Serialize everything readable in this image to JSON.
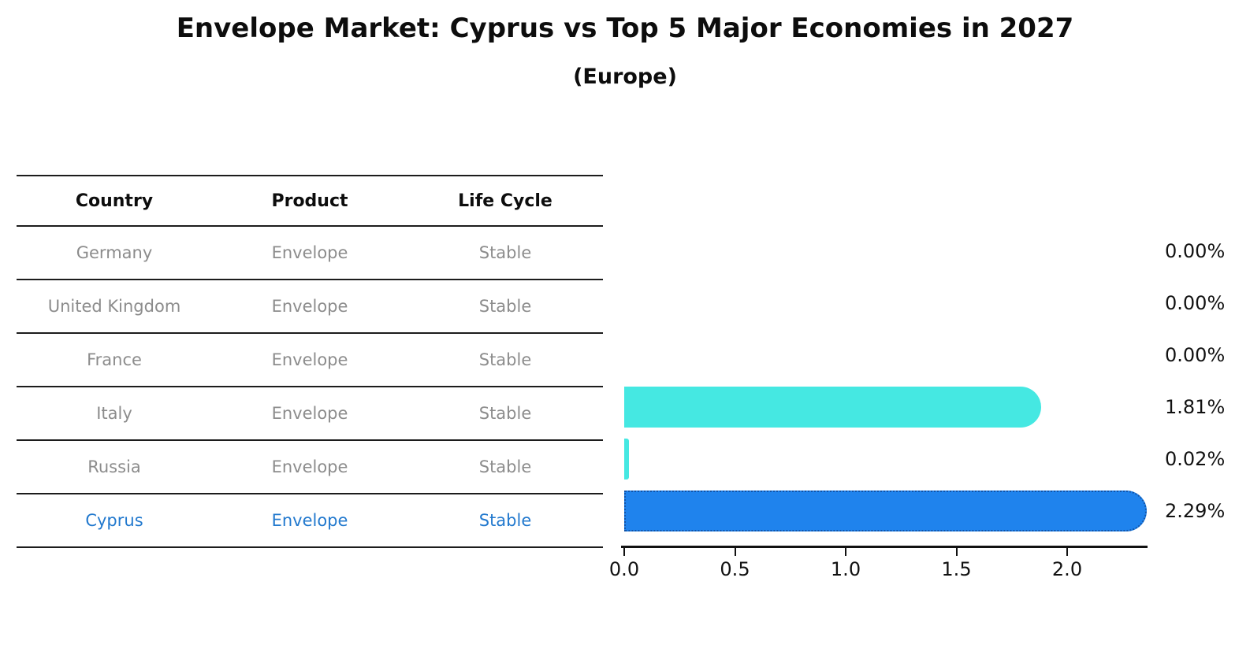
{
  "header": {
    "title": "Envelope Market: Cyprus vs Top 5 Major Economies in 2027",
    "subtitle": "(Europe)"
  },
  "table": {
    "columns": [
      "Country",
      "Product",
      "Life Cycle"
    ],
    "rows": [
      {
        "country": "Germany",
        "product": "Envelope",
        "life_cycle": "Stable",
        "highlight": false
      },
      {
        "country": "United Kingdom",
        "product": "Envelope",
        "life_cycle": "Stable",
        "highlight": false
      },
      {
        "country": "France",
        "product": "Envelope",
        "life_cycle": "Stable",
        "highlight": false
      },
      {
        "country": "Italy",
        "product": "Envelope",
        "life_cycle": "Stable",
        "highlight": false
      },
      {
        "country": "Russia",
        "product": "Envelope",
        "life_cycle": "Stable",
        "highlight": false
      },
      {
        "country": "Cyprus",
        "product": "Envelope",
        "life_cycle": "Stable",
        "highlight": true
      }
    ]
  },
  "chart_data": {
    "type": "bar",
    "orientation": "horizontal",
    "title": "Envelope Market: Cyprus vs Top 5 Major Economies in 2027",
    "subtitle": "(Europe)",
    "categories": [
      "Germany",
      "United Kingdom",
      "France",
      "Italy",
      "Russia",
      "Cyprus"
    ],
    "values": [
      0.0,
      0.0,
      0.0,
      1.81,
      0.02,
      2.29
    ],
    "value_labels": [
      "0.00%",
      "0.00%",
      "0.00%",
      "1.81%",
      "0.02%",
      "2.29%"
    ],
    "unit": "%",
    "highlight_index": 5,
    "x_ticks": [
      0.0,
      0.5,
      1.0,
      1.5,
      2.0
    ],
    "x_tick_labels": [
      "0.0",
      "0.5",
      "1.0",
      "1.5",
      "2.0"
    ],
    "xlim": [
      0.0,
      2.38
    ],
    "grid": false,
    "legend": false,
    "colors": {
      "bar": "#45e8e2",
      "highlight_bar": "#1f83ed",
      "highlight_border": "#1254a8",
      "text": "#111111",
      "muted_text": "#8c8c8c",
      "highlight_text": "#2279ce"
    }
  }
}
